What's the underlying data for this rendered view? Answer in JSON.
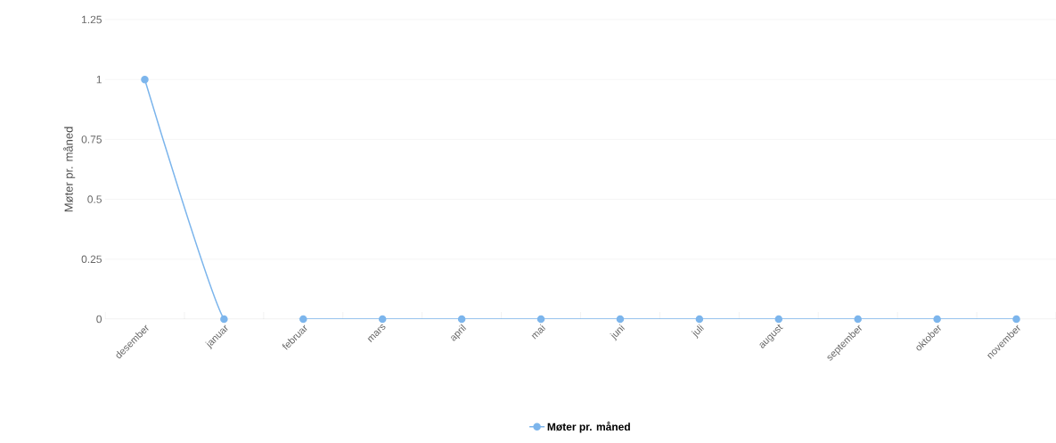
{
  "chart_data": {
    "type": "line",
    "ylabel": "Møter pr. måned",
    "categories": [
      "desember",
      "januar",
      "februar",
      "mars",
      "april",
      "mai",
      "juni",
      "juli",
      "august",
      "september",
      "oktober",
      "november"
    ],
    "series": [
      {
        "name": "Møter pr. måned",
        "color": "#7cb5ec",
        "values": [
          1,
          0,
          0,
          0,
          0,
          0,
          0,
          0,
          0,
          0,
          0,
          0
        ]
      }
    ],
    "ylim": [
      0,
      1.25
    ],
    "yticks": [
      0,
      0.25,
      0.5,
      0.75,
      1,
      1.25
    ],
    "grid": "y",
    "legend": "bottom",
    "marker": "circle",
    "line_style": "solid"
  }
}
